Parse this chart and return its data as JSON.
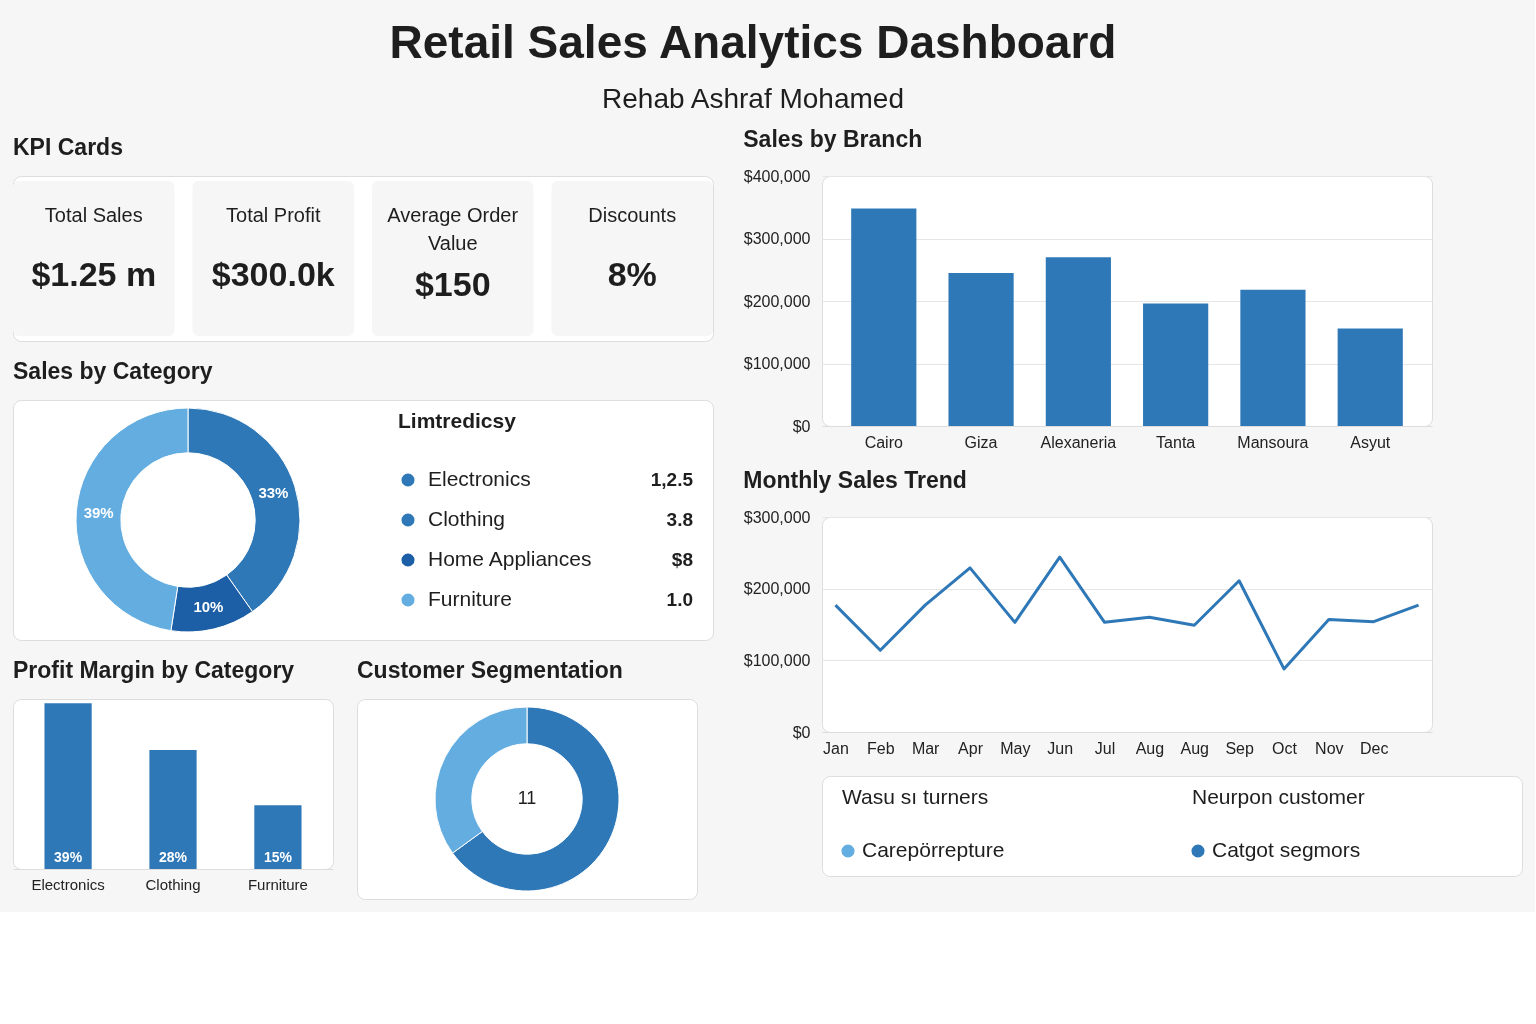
{
  "chart_data": [
    {
      "type": "other",
      "title": "Retail Sales Analytics Dashboard",
      "subtitle": "Rehab Ashraf Mohamed"
    },
    {
      "type": "other",
      "title": "KPI Cards",
      "annotations": [
        "Total Sales",
        "$1.25 m",
        "Total Profit",
        "$300.0k",
        "Average Order Value",
        "$150",
        "Discounts",
        "8%"
      ]
    },
    {
      "type": "donut",
      "title": "Sales by Category",
      "legend_title": "Limtredicsy",
      "legend": "right",
      "categories": [
        "Electronics",
        "Clothing",
        "Home Appliances",
        "Furniture"
      ],
      "values": [
        33,
        null,
        10,
        39
      ],
      "colors": [
        "#2e78b7",
        "#2e78b7",
        "#1c5fa6",
        "#63ade0"
      ],
      "value_labels": [
        "33%",
        null,
        "10%",
        "39%"
      ],
      "annotations": [
        "1,2.5",
        "3.8",
        "$8",
        "1.0"
      ]
    },
    {
      "type": "bar",
      "title": "Profit Margin by Category",
      "categories": [
        "Electronics",
        "Clothing",
        "Furniture"
      ],
      "values": [
        39,
        28,
        15
      ],
      "value_labels": [
        "39%",
        "28%",
        "15%"
      ],
      "color": "#2e78b7",
      "tick_labels": "x"
    },
    {
      "type": "donut",
      "title": "Customer Segmentation",
      "categories": [
        "Catgot segmors",
        "Carepörrepture"
      ],
      "values": [
        65,
        35
      ],
      "colors": [
        "#2e78b7",
        "#63ade0"
      ],
      "legend": "bottom",
      "annotations": [
        "11",
        "Wasu sı turners",
        "Neurpon customer"
      ]
    },
    {
      "type": "bar",
      "title": "Sales by Branch",
      "categories": [
        "Cairo",
        "Giza",
        "Alexaneria",
        "Tanta",
        "Mansoura",
        "Asyut"
      ],
      "values": [
        348000,
        245000,
        270000,
        196000,
        218000,
        156000
      ],
      "color": "#2e78b7",
      "ylim": [
        0,
        400000
      ],
      "yticks": [
        {
          "value": 0,
          "label": "$0"
        },
        {
          "value": 100000,
          "label": "$100,000"
        },
        {
          "value": 200000,
          "label": "$200,000"
        },
        {
          "value": 300000,
          "label": "$300,000"
        },
        {
          "value": 400000,
          "label": "$400,000"
        }
      ],
      "grid": "y"
    },
    {
      "type": "line",
      "title": "Monthly Sales Trend",
      "categories": [
        "Jan",
        "Feb",
        "Mar",
        "Apr",
        "May",
        "Jun",
        "Jul",
        "Aug",
        "Aug",
        "Sep",
        "Oct",
        "Nov",
        "Dec",
        null
      ],
      "values": [
        177000,
        114000,
        177000,
        229000,
        153000,
        244000,
        153000,
        160000,
        149000,
        211000,
        88000,
        157000,
        154000,
        177000
      ],
      "color": "#2e78b7",
      "ylim": [
        0,
        300000
      ],
      "yticks": [
        {
          "value": 0,
          "label": "$0"
        },
        {
          "value": 100000,
          "label": "$100,000"
        },
        {
          "value": 200000,
          "label": "$200,000"
        },
        {
          "value": 300000,
          "label": "$300,000"
        }
      ],
      "grid": "y"
    }
  ]
}
